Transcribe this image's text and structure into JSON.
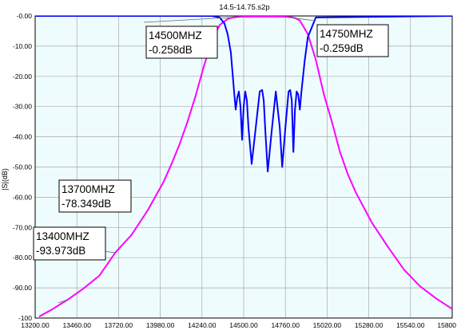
{
  "chart_data": {
    "type": "line",
    "title": "14.5-14.75.s2p",
    "xlabel": "",
    "ylabel": "|S|(dB)",
    "xlim": [
      13200,
      15800
    ],
    "ylim": [
      -100,
      0
    ],
    "xticks": [
      13200,
      13460,
      13720,
      13980,
      14240,
      14500,
      14760,
      15020,
      15280,
      15540,
      15800
    ],
    "xtick_labels": [
      "13200.00",
      "13460.00",
      "13720.00",
      "13980.00",
      "14240.00",
      "14500.00",
      "14760.00",
      "15020.00",
      "15280.00",
      "15540.00",
      "15800"
    ],
    "yticks": [
      0,
      -10,
      -20,
      -30,
      -40,
      -50,
      -60,
      -70,
      -80,
      -90,
      -100
    ],
    "ytick_labels": [
      "-0.00",
      "-10.00",
      "-20.00",
      "-30.00",
      "-40.00",
      "-50.00",
      "-60.00",
      "-70.00",
      "-80.00",
      "-90.00",
      "-100"
    ],
    "grid": true,
    "background": "#eefcfd",
    "series": [
      {
        "color": "#ff00ff",
        "x": [
          13225,
          13300,
          13400,
          13500,
          13600,
          13700,
          13800,
          13900,
          14000,
          14050,
          14100,
          14150,
          14200,
          14250,
          14300,
          14350,
          14400,
          14425,
          14450,
          14475,
          14500,
          14550,
          14600,
          14650,
          14700,
          14750,
          14775,
          14800,
          14825,
          14850,
          14900,
          14950,
          15000,
          15050,
          15100,
          15150,
          15200,
          15300,
          15400,
          15500,
          15600,
          15700,
          15800
        ],
        "y": [
          -99.5,
          -97.3,
          -94,
          -90.3,
          -86,
          -78.3,
          -72.5,
          -64.5,
          -55,
          -49,
          -42.5,
          -35,
          -26.5,
          -17,
          -8.5,
          -3,
          -1,
          -0.6,
          -0.4,
          -0.3,
          -0.26,
          -0.2,
          -0.2,
          -0.2,
          -0.2,
          -0.26,
          -0.3,
          -0.45,
          -0.8,
          -1.5,
          -6,
          -14.5,
          -26,
          -35,
          -45,
          -52.5,
          -58.5,
          -68.5,
          -76.5,
          -84,
          -89.5,
          -93.5,
          -97
        ]
      },
      {
        "color": "#0000ff",
        "x": [
          13200,
          14300,
          14350,
          14380,
          14400,
          14420,
          14440,
          14450,
          14460,
          14470,
          14480,
          14490,
          14500,
          14510,
          14520,
          14530,
          14550,
          14575,
          14600,
          14615,
          14625,
          14635,
          14650,
          14675,
          14700,
          14725,
          14740,
          14760,
          14780,
          14790,
          14800,
          14810,
          14820,
          14830,
          14840,
          14850,
          14860,
          14880,
          14900,
          14950,
          15800
        ],
        "y": [
          0,
          0,
          -0.5,
          -2.5,
          -6,
          -12,
          -25,
          -31,
          -27,
          -25,
          -30,
          -41,
          -30,
          -25,
          -28,
          -37,
          -49,
          -37,
          -25,
          -24.5,
          -28,
          -38,
          -51.5,
          -38,
          -25,
          -37,
          -50,
          -37,
          -25,
          -24.5,
          -28,
          -45,
          -31,
          -25,
          -26,
          -31,
          -25,
          -15,
          -7,
          -0.5,
          0
        ]
      }
    ],
    "markers": [
      {
        "label": "14500MHZ",
        "value": "-0.258dB",
        "x": 14500,
        "y": -0.258
      },
      {
        "label": "14750MHZ",
        "value": "-0.259dB",
        "x": 14750,
        "y": -0.259
      },
      {
        "label": "13700MHZ",
        "value": "-78.349dB",
        "x": 13700,
        "y": -78.349
      },
      {
        "label": "13400MHZ",
        "value": "-93.973dB",
        "x": 13400,
        "y": -93.973
      }
    ]
  }
}
